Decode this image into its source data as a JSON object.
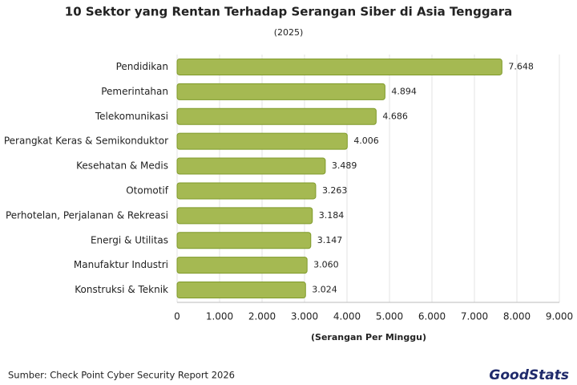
{
  "chart_data": {
    "type": "bar",
    "orientation": "horizontal",
    "title": "10 Sektor yang Rentan Terhadap Serangan Siber di Asia Tenggara",
    "subtitle": "(2025)",
    "x_label": "(Serangan Per Minggu)",
    "source": "Sumber: Check Point Cyber Security Report 2026",
    "logo": "GoodStats",
    "categories": [
      "Pendidikan",
      "Pemerintahan",
      "Telekomunikasi",
      "Perangkat Keras & Semikonduktor",
      "Kesehatan & Medis",
      "Otomotif",
      "Perhotelan, Perjalanan & Rekreasi",
      "Energi & Utilitas",
      "Manufaktur Industri",
      "Konstruksi & Teknik"
    ],
    "values": [
      7648,
      4894,
      4686,
      4006,
      3489,
      3263,
      3184,
      3147,
      3060,
      3024
    ],
    "value_labels": [
      "7.648",
      "4.894",
      "4.686",
      "4.006",
      "3.489",
      "3.263",
      "3.184",
      "3.147",
      "3.060",
      "3.024"
    ],
    "color": "#a5b952",
    "xlim": [
      0,
      9000
    ],
    "xticks": [
      0,
      {
        "value": 1000,
        "label": "1.000"
      },
      {
        "value": 2000,
        "label": "2.000"
      },
      {
        "value": 3000,
        "label": "3.000"
      },
      {
        "value": 4000,
        "label": "4.000"
      },
      {
        "value": 5000,
        "label": "5.000"
      },
      {
        "value": 6000,
        "label": "6.000"
      },
      {
        "value": 7000,
        "label": "7.000"
      },
      {
        "value": 8000,
        "label": "8.000"
      },
      {
        "value": 9000,
        "label": "9.000"
      }
    ],
    "grid": true
  }
}
